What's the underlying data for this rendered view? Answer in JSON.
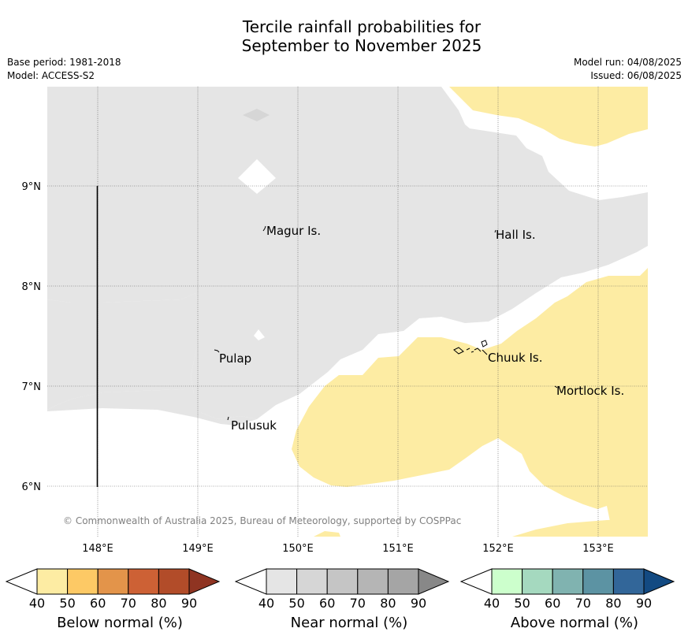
{
  "title_line1": "Tercile rainfall probabilities for",
  "title_line2": "September to November 2025",
  "base_period": "Base period: 1981-2018",
  "model": "Model: ACCESS-S2",
  "model_run": "Model run: 04/08/2025",
  "issued": "Issued: 06/08/2025",
  "copyright": "© Commonwealth of Australia 2025, Bureau of Meteorology, supported by COSPPac",
  "lat_labels": [
    "9°N",
    "8°N",
    "7°N",
    "6°N"
  ],
  "lon_labels": [
    "148°E",
    "149°E",
    "150°E",
    "151°E",
    "152°E",
    "153°E"
  ],
  "places": {
    "magur": "Magur Is.",
    "hall": "Hall Is.",
    "pulap": "Pulap",
    "chuuk": "Chuuk Is.",
    "mortlock": "Mortlock Is.",
    "pulusuk": "Pulusuk"
  },
  "colors": {
    "near_normal_fill": "#e5e5e5",
    "below_normal_fill": "#fdeca3"
  },
  "colorbars": [
    {
      "label": "Below normal (%)",
      "ticks": [
        "40",
        "50",
        "60",
        "70",
        "80",
        "90"
      ],
      "colors": [
        "#ffffff",
        "#fdeca3",
        "#fdc965",
        "#e3944a",
        "#cd6135",
        "#b24c29",
        "#8f3422"
      ]
    },
    {
      "label": "Near normal (%)",
      "ticks": [
        "40",
        "50",
        "60",
        "70",
        "80",
        "90"
      ],
      "colors": [
        "#ffffff",
        "#e5e5e5",
        "#d6d6d6",
        "#c5c5c5",
        "#b5b5b5",
        "#a5a5a5",
        "#888888"
      ]
    },
    {
      "label": "Above normal (%)",
      "ticks": [
        "40",
        "50",
        "60",
        "70",
        "80",
        "90"
      ],
      "colors": [
        "#ffffff",
        "#ccffcc",
        "#a5d9bf",
        "#80b3b0",
        "#5c93a3",
        "#326699",
        "#134a82"
      ]
    }
  ]
}
